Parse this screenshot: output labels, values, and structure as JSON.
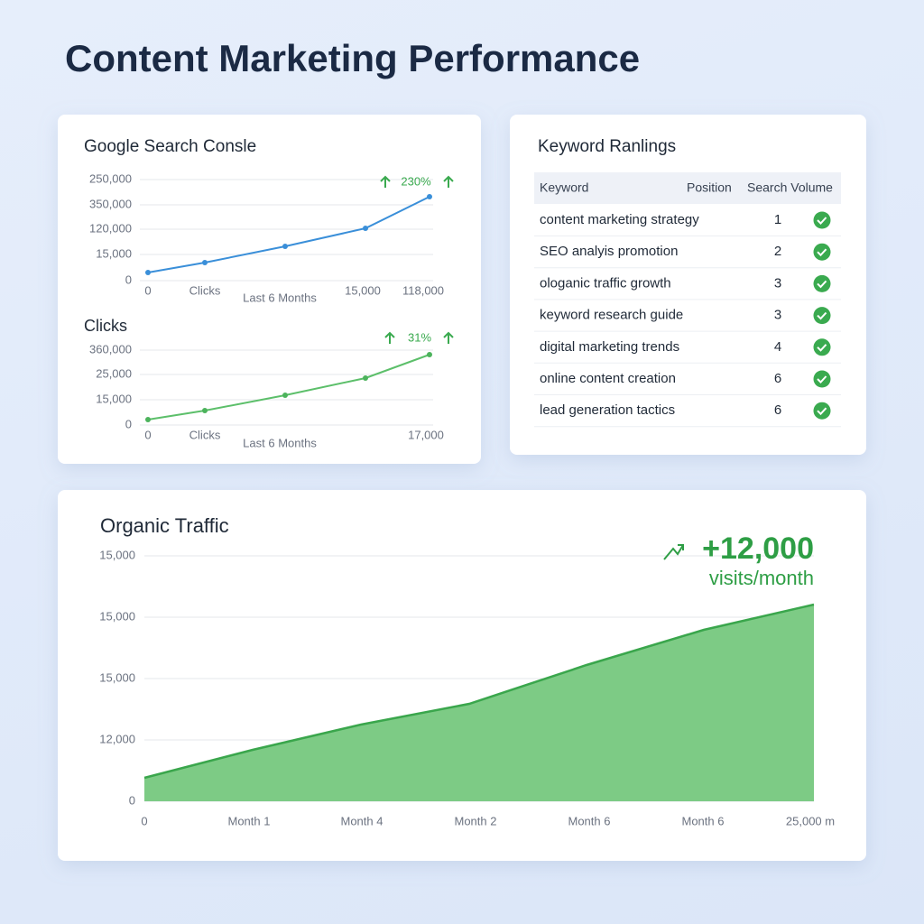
{
  "header": {
    "title": "Content Marketing Performance"
  },
  "search_console": {
    "title": "Google Search Consle",
    "chart1": {
      "ylabels": [
        "250,000",
        "350,000",
        "120,000",
        "15,000",
        "0"
      ],
      "xlabels": [
        "0",
        "Clicks",
        "Last 6 Months",
        "15,000",
        "118,000"
      ],
      "badge": "230%"
    },
    "chart2_title": "Clicks",
    "chart2": {
      "ylabels": [
        "360,000",
        "25,000",
        "15,000",
        "0"
      ],
      "xlabels": [
        "0",
        "Clicks",
        "Last 6 Months",
        "17,000"
      ],
      "badge": "31%"
    }
  },
  "keywords": {
    "title": "Keyword Ranlings",
    "table": {
      "header": [
        "Keyword",
        "Position",
        "Search Volume"
      ],
      "rows": [
        [
          "content marketing strategy",
          "1"
        ],
        [
          "SEO analyis promotion",
          "2"
        ],
        [
          "ologanic traffic growth",
          "3"
        ],
        [
          "keyword research guide",
          "3"
        ],
        [
          "digital marketing trends",
          "4"
        ],
        [
          "online content creation",
          "6"
        ],
        [
          "lead generation tactics",
          "6"
        ]
      ]
    }
  },
  "organic": {
    "title": "Organic Traffic",
    "highlight": "+12,000",
    "highlight_unit": "visits/month",
    "ylabels": [
      "15,000",
      "15,000",
      "15,000",
      "12,000",
      "0"
    ],
    "xlabels": [
      "0",
      "Month 1",
      "Month 4",
      "Month 2",
      "Month 6",
      "Month 6",
      "25,000 m"
    ]
  }
}
